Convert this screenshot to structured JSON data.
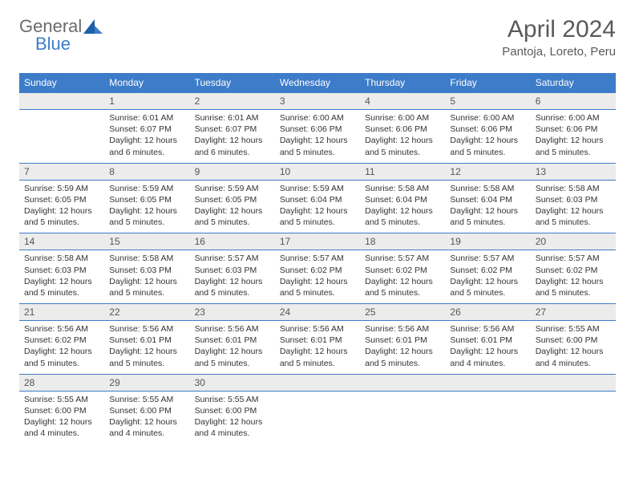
{
  "logo": {
    "text1": "General",
    "text2": "Blue"
  },
  "title": "April 2024",
  "location": "Pantoja, Loreto, Peru",
  "colors": {
    "header_bg": "#3d7cc9",
    "header_text": "#ffffff",
    "daynum_bg": "#ececec",
    "border": "#3d7cc9",
    "body_text": "#333333",
    "title_text": "#5a5a5a"
  },
  "weekdays": [
    "Sunday",
    "Monday",
    "Tuesday",
    "Wednesday",
    "Thursday",
    "Friday",
    "Saturday"
  ],
  "weeks": [
    [
      {
        "n": "",
        "lines": []
      },
      {
        "n": "1",
        "lines": [
          "Sunrise: 6:01 AM",
          "Sunset: 6:07 PM",
          "Daylight: 12 hours and 6 minutes."
        ]
      },
      {
        "n": "2",
        "lines": [
          "Sunrise: 6:01 AM",
          "Sunset: 6:07 PM",
          "Daylight: 12 hours and 6 minutes."
        ]
      },
      {
        "n": "3",
        "lines": [
          "Sunrise: 6:00 AM",
          "Sunset: 6:06 PM",
          "Daylight: 12 hours and 5 minutes."
        ]
      },
      {
        "n": "4",
        "lines": [
          "Sunrise: 6:00 AM",
          "Sunset: 6:06 PM",
          "Daylight: 12 hours and 5 minutes."
        ]
      },
      {
        "n": "5",
        "lines": [
          "Sunrise: 6:00 AM",
          "Sunset: 6:06 PM",
          "Daylight: 12 hours and 5 minutes."
        ]
      },
      {
        "n": "6",
        "lines": [
          "Sunrise: 6:00 AM",
          "Sunset: 6:06 PM",
          "Daylight: 12 hours and 5 minutes."
        ]
      }
    ],
    [
      {
        "n": "7",
        "lines": [
          "Sunrise: 5:59 AM",
          "Sunset: 6:05 PM",
          "Daylight: 12 hours and 5 minutes."
        ]
      },
      {
        "n": "8",
        "lines": [
          "Sunrise: 5:59 AM",
          "Sunset: 6:05 PM",
          "Daylight: 12 hours and 5 minutes."
        ]
      },
      {
        "n": "9",
        "lines": [
          "Sunrise: 5:59 AM",
          "Sunset: 6:05 PM",
          "Daylight: 12 hours and 5 minutes."
        ]
      },
      {
        "n": "10",
        "lines": [
          "Sunrise: 5:59 AM",
          "Sunset: 6:04 PM",
          "Daylight: 12 hours and 5 minutes."
        ]
      },
      {
        "n": "11",
        "lines": [
          "Sunrise: 5:58 AM",
          "Sunset: 6:04 PM",
          "Daylight: 12 hours and 5 minutes."
        ]
      },
      {
        "n": "12",
        "lines": [
          "Sunrise: 5:58 AM",
          "Sunset: 6:04 PM",
          "Daylight: 12 hours and 5 minutes."
        ]
      },
      {
        "n": "13",
        "lines": [
          "Sunrise: 5:58 AM",
          "Sunset: 6:03 PM",
          "Daylight: 12 hours and 5 minutes."
        ]
      }
    ],
    [
      {
        "n": "14",
        "lines": [
          "Sunrise: 5:58 AM",
          "Sunset: 6:03 PM",
          "Daylight: 12 hours and 5 minutes."
        ]
      },
      {
        "n": "15",
        "lines": [
          "Sunrise: 5:58 AM",
          "Sunset: 6:03 PM",
          "Daylight: 12 hours and 5 minutes."
        ]
      },
      {
        "n": "16",
        "lines": [
          "Sunrise: 5:57 AM",
          "Sunset: 6:03 PM",
          "Daylight: 12 hours and 5 minutes."
        ]
      },
      {
        "n": "17",
        "lines": [
          "Sunrise: 5:57 AM",
          "Sunset: 6:02 PM",
          "Daylight: 12 hours and 5 minutes."
        ]
      },
      {
        "n": "18",
        "lines": [
          "Sunrise: 5:57 AM",
          "Sunset: 6:02 PM",
          "Daylight: 12 hours and 5 minutes."
        ]
      },
      {
        "n": "19",
        "lines": [
          "Sunrise: 5:57 AM",
          "Sunset: 6:02 PM",
          "Daylight: 12 hours and 5 minutes."
        ]
      },
      {
        "n": "20",
        "lines": [
          "Sunrise: 5:57 AM",
          "Sunset: 6:02 PM",
          "Daylight: 12 hours and 5 minutes."
        ]
      }
    ],
    [
      {
        "n": "21",
        "lines": [
          "Sunrise: 5:56 AM",
          "Sunset: 6:02 PM",
          "Daylight: 12 hours and 5 minutes."
        ]
      },
      {
        "n": "22",
        "lines": [
          "Sunrise: 5:56 AM",
          "Sunset: 6:01 PM",
          "Daylight: 12 hours and 5 minutes."
        ]
      },
      {
        "n": "23",
        "lines": [
          "Sunrise: 5:56 AM",
          "Sunset: 6:01 PM",
          "Daylight: 12 hours and 5 minutes."
        ]
      },
      {
        "n": "24",
        "lines": [
          "Sunrise: 5:56 AM",
          "Sunset: 6:01 PM",
          "Daylight: 12 hours and 5 minutes."
        ]
      },
      {
        "n": "25",
        "lines": [
          "Sunrise: 5:56 AM",
          "Sunset: 6:01 PM",
          "Daylight: 12 hours and 5 minutes."
        ]
      },
      {
        "n": "26",
        "lines": [
          "Sunrise: 5:56 AM",
          "Sunset: 6:01 PM",
          "Daylight: 12 hours and 4 minutes."
        ]
      },
      {
        "n": "27",
        "lines": [
          "Sunrise: 5:55 AM",
          "Sunset: 6:00 PM",
          "Daylight: 12 hours and 4 minutes."
        ]
      }
    ],
    [
      {
        "n": "28",
        "lines": [
          "Sunrise: 5:55 AM",
          "Sunset: 6:00 PM",
          "Daylight: 12 hours and 4 minutes."
        ]
      },
      {
        "n": "29",
        "lines": [
          "Sunrise: 5:55 AM",
          "Sunset: 6:00 PM",
          "Daylight: 12 hours and 4 minutes."
        ]
      },
      {
        "n": "30",
        "lines": [
          "Sunrise: 5:55 AM",
          "Sunset: 6:00 PM",
          "Daylight: 12 hours and 4 minutes."
        ]
      },
      {
        "n": "",
        "lines": []
      },
      {
        "n": "",
        "lines": []
      },
      {
        "n": "",
        "lines": []
      },
      {
        "n": "",
        "lines": []
      }
    ]
  ]
}
